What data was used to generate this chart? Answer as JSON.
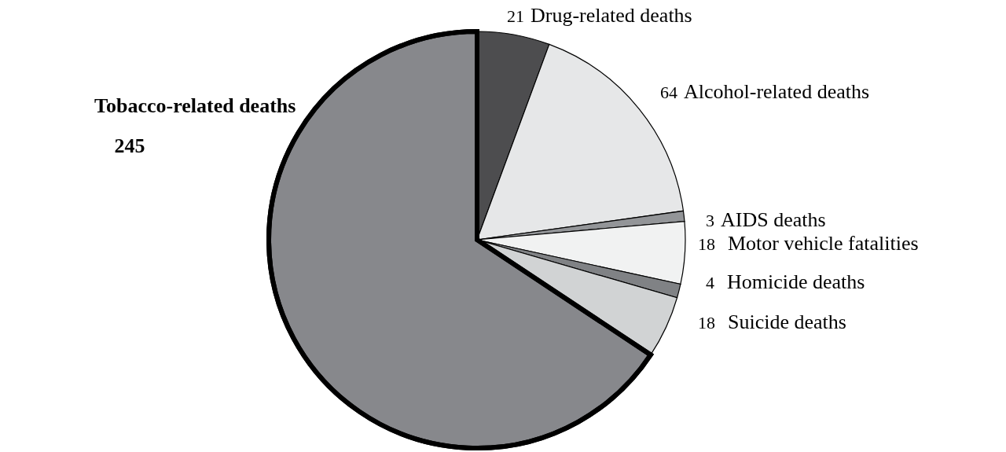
{
  "chart_data": {
    "type": "pie",
    "categories": [
      "Drug-related deaths",
      "Alcohol-related deaths",
      "AIDS deaths",
      "Motor vehicle fatalities",
      "Homicide deaths",
      "Suicide deaths",
      "Tobacco-related deaths"
    ],
    "values": [
      21,
      64,
      3,
      18,
      4,
      18,
      245
    ],
    "colors": [
      "#4d4d4f",
      "#e6e7e8",
      "#939598",
      "#f1f2f2",
      "#808285",
      "#d1d3d4",
      "#87888c"
    ],
    "data_labels": true
  }
}
